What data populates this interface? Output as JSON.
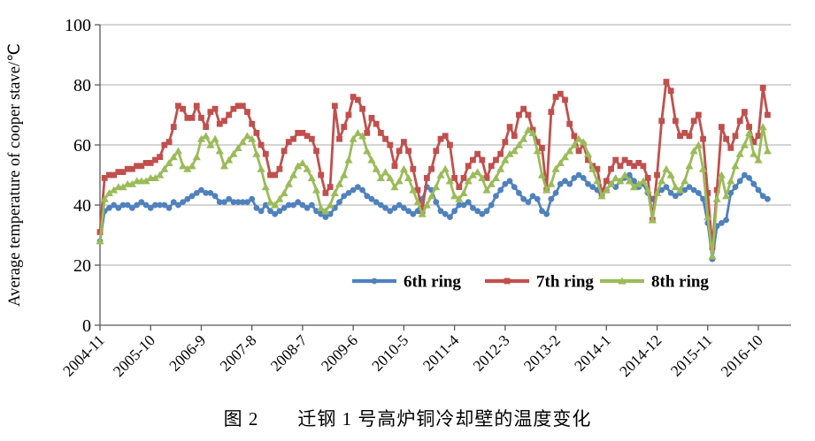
{
  "figure": {
    "caption": "图 2　　迁钢 1 号高炉铜冷却壁的温度变化"
  },
  "colors": {
    "axis": "#595959",
    "grid": "#ababab",
    "blue": "#4F81BD",
    "red": "#C0504D",
    "green": "#9BBB59"
  },
  "chart_data": {
    "type": "line",
    "title": "",
    "xlabel": "",
    "ylabel": "Average temperature of cooper stave/℃",
    "ylim": [
      0,
      100
    ],
    "yticks": [
      0,
      20,
      40,
      60,
      80,
      100
    ],
    "grid": "horizontal",
    "legend_position": "inside-bottom-center",
    "xtick_labels": [
      "2004-11",
      "2005-10",
      "2006-9",
      "2007-8",
      "2008-7",
      "2009-6",
      "2010-5",
      "2011-4",
      "2012-3",
      "2013-2",
      "2014-1",
      "2014-12",
      "2015-11",
      "2016-10"
    ],
    "x": [
      "2004-11",
      "2004-12",
      "2005-1",
      "2005-2",
      "2005-3",
      "2005-4",
      "2005-5",
      "2005-6",
      "2005-7",
      "2005-8",
      "2005-9",
      "2005-10",
      "2005-11",
      "2005-12",
      "2006-1",
      "2006-2",
      "2006-3",
      "2006-4",
      "2006-5",
      "2006-6",
      "2006-7",
      "2006-8",
      "2006-9",
      "2006-10",
      "2006-11",
      "2006-12",
      "2007-1",
      "2007-2",
      "2007-3",
      "2007-4",
      "2007-5",
      "2007-6",
      "2007-7",
      "2007-8",
      "2007-9",
      "2007-10",
      "2007-11",
      "2007-12",
      "2008-1",
      "2008-2",
      "2008-3",
      "2008-4",
      "2008-5",
      "2008-6",
      "2008-7",
      "2008-8",
      "2008-9",
      "2008-10",
      "2008-11",
      "2008-12",
      "2009-1",
      "2009-2",
      "2009-3",
      "2009-4",
      "2009-5",
      "2009-6",
      "2009-7",
      "2009-8",
      "2009-9",
      "2009-10",
      "2009-11",
      "2009-12",
      "2010-1",
      "2010-2",
      "2010-3",
      "2010-4",
      "2010-5",
      "2010-6",
      "2010-7",
      "2010-8",
      "2010-9",
      "2010-10",
      "2010-11",
      "2010-12",
      "2011-1",
      "2011-2",
      "2011-3",
      "2011-4",
      "2011-5",
      "2011-6",
      "2011-7",
      "2011-8",
      "2011-9",
      "2011-10",
      "2011-11",
      "2011-12",
      "2012-1",
      "2012-2",
      "2012-3",
      "2012-4",
      "2012-5",
      "2012-6",
      "2012-7",
      "2012-8",
      "2012-9",
      "2012-10",
      "2012-11",
      "2012-12",
      "2013-1",
      "2013-2",
      "2013-3",
      "2013-4",
      "2013-5",
      "2013-6",
      "2013-7",
      "2013-8",
      "2013-9",
      "2013-10",
      "2013-11",
      "2013-12",
      "2014-1",
      "2014-2",
      "2014-3",
      "2014-4",
      "2014-5",
      "2014-6",
      "2014-7",
      "2014-8",
      "2014-9",
      "2014-10",
      "2014-11",
      "2014-12",
      "2015-1",
      "2015-2",
      "2015-3",
      "2015-4",
      "2015-5",
      "2015-6",
      "2015-7",
      "2015-8",
      "2015-9",
      "2015-10",
      "2015-11",
      "2015-12",
      "2016-1",
      "2016-2",
      "2016-3",
      "2016-4",
      "2016-5",
      "2016-6",
      "2016-7",
      "2016-8",
      "2016-9",
      "2016-10",
      "2016-11",
      "2016-12"
    ],
    "series": [
      {
        "name": "6th ring",
        "color": "#4F81BD",
        "marker": "circle",
        "values": [
          28,
          38,
          39,
          40,
          39,
          40,
          40,
          39,
          40,
          41,
          40,
          39,
          40,
          40,
          40,
          39,
          41,
          40,
          41,
          42,
          43,
          44,
          45,
          44,
          44,
          43,
          41,
          41,
          42,
          41,
          41,
          41,
          41,
          42,
          39,
          38,
          40,
          38,
          37,
          38,
          39,
          40,
          40,
          41,
          40,
          39,
          40,
          38,
          37,
          36,
          37,
          39,
          41,
          43,
          44,
          45,
          46,
          45,
          43,
          42,
          41,
          40,
          39,
          38,
          39,
          40,
          39,
          38,
          37,
          38,
          42,
          46,
          45,
          41,
          38,
          37,
          36,
          38,
          40,
          40,
          41,
          39,
          38,
          37,
          38,
          40,
          43,
          45,
          47,
          48,
          46,
          44,
          42,
          41,
          43,
          42,
          38,
          37,
          42,
          44,
          47,
          48,
          47,
          49,
          50,
          49,
          47,
          46,
          45,
          43,
          45,
          47,
          46,
          48,
          49,
          50,
          48,
          46,
          47,
          44,
          42,
          44,
          45,
          46,
          44,
          43,
          44,
          45,
          46,
          45,
          44,
          42,
          34,
          22,
          33,
          34,
          35,
          44,
          46,
          48,
          50,
          49,
          47,
          45,
          43,
          42
        ]
      },
      {
        "name": "7th ring",
        "color": "#C0504D",
        "marker": "square",
        "values": [
          31,
          49,
          50,
          50,
          51,
          51,
          52,
          52,
          53,
          53,
          54,
          54,
          55,
          56,
          60,
          61,
          66,
          73,
          72,
          69,
          69,
          73,
          69,
          66,
          71,
          72,
          67,
          68,
          70,
          72,
          73,
          73,
          71,
          67,
          64,
          60,
          57,
          50,
          50,
          52,
          58,
          61,
          62,
          64,
          64,
          63,
          62,
          58,
          50,
          44,
          46,
          73,
          62,
          66,
          70,
          76,
          75,
          72,
          64,
          69,
          67,
          64,
          62,
          60,
          53,
          58,
          61,
          58,
          52,
          45,
          38,
          49,
          52,
          58,
          62,
          63,
          60,
          49,
          46,
          49,
          53,
          55,
          57,
          55,
          49,
          53,
          55,
          57,
          61,
          66,
          63,
          70,
          72,
          70,
          65,
          61,
          59,
          45,
          71,
          76,
          77,
          75,
          67,
          63,
          58,
          60,
          55,
          53,
          52,
          44,
          48,
          52,
          55,
          53,
          55,
          54,
          53,
          54,
          53,
          49,
          35,
          50,
          68,
          81,
          78,
          68,
          63,
          64,
          63,
          68,
          70,
          62,
          44,
          26,
          45,
          66,
          62,
          59,
          63,
          68,
          71,
          66,
          61,
          63,
          79,
          70
        ]
      },
      {
        "name": "8th ring",
        "color": "#9BBB59",
        "marker": "triangle",
        "values": [
          28,
          42,
          44,
          45,
          46,
          46,
          47,
          47,
          48,
          48,
          48,
          49,
          49,
          50,
          52,
          54,
          56,
          58,
          53,
          52,
          53,
          56,
          62,
          63,
          60,
          62,
          58,
          53,
          55,
          57,
          59,
          61,
          63,
          62,
          57,
          52,
          46,
          41,
          40,
          42,
          44,
          47,
          50,
          53,
          54,
          52,
          49,
          45,
          39,
          38,
          40,
          44,
          47,
          50,
          55,
          62,
          64,
          63,
          58,
          55,
          52,
          49,
          51,
          49,
          46,
          48,
          52,
          49,
          45,
          41,
          37,
          40,
          43,
          46,
          50,
          52,
          48,
          43,
          42,
          44,
          48,
          50,
          51,
          49,
          45,
          47,
          49,
          52,
          55,
          57,
          58,
          60,
          62,
          65,
          64,
          58,
          50,
          45,
          47,
          52,
          54,
          56,
          58,
          60,
          62,
          61,
          57,
          52,
          48,
          43,
          45,
          47,
          49,
          48,
          50,
          48,
          46,
          47,
          48,
          45,
          35,
          44,
          48,
          52,
          50,
          46,
          45,
          48,
          53,
          58,
          60,
          52,
          36,
          23,
          42,
          50,
          43,
          48,
          53,
          57,
          60,
          64,
          57,
          55,
          66,
          58
        ]
      }
    ]
  }
}
